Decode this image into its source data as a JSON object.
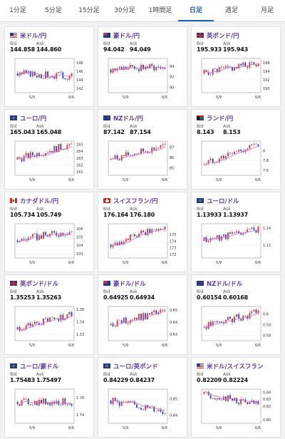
{
  "tabs": [
    {
      "label": "1分足",
      "active": false
    },
    {
      "label": "5分足",
      "active": false
    },
    {
      "label": "15分足",
      "active": false
    },
    {
      "label": "30分足",
      "active": false
    },
    {
      "label": "1時間足",
      "active": false
    },
    {
      "label": "日足",
      "active": true
    },
    {
      "label": "週足",
      "active": false
    },
    {
      "label": "月足",
      "active": false
    }
  ],
  "labels": {
    "bid": "Bid",
    "ask": "Ask"
  },
  "colors": {
    "up": "#e03a3a",
    "down": "#2b4fc6",
    "ma": "#d46bd6",
    "accent": "#1d5fb5"
  },
  "cards": [
    {
      "name": "米ドル/円",
      "flag": "us-flag",
      "bid": "144.858",
      "ask": "144.860"
    },
    {
      "name": "豪ドル/円",
      "flag": "au-flag",
      "bid": "94.042",
      "ask": "94.049"
    },
    {
      "name": "英ポンド/円",
      "flag": "gb-flag",
      "bid": "195.933",
      "ask": "195.943"
    },
    {
      "name": "ユーロ/円",
      "flag": "eu-flag",
      "bid": "165.043",
      "ask": "165.048"
    },
    {
      "name": "NZドル/円",
      "flag": "nz-flag",
      "bid": "87.142",
      "ask": "87.154"
    },
    {
      "name": "ランド/円",
      "flag": "za-flag",
      "bid": "8.143",
      "ask": "8.153"
    },
    {
      "name": "カナダドル/円",
      "flag": "ca-flag",
      "bid": "105.734",
      "ask": "105.749"
    },
    {
      "name": "スイスフラン/円",
      "flag": "ch-flag",
      "bid": "176.164",
      "ask": "176.180"
    },
    {
      "name": "ユーロ/ドル",
      "flag": "eu-flag",
      "bid": "1.13933",
      "ask": "1.13937"
    },
    {
      "name": "英ポンド/ドル",
      "flag": "gb-flag",
      "bid": "1.35253",
      "ask": "1.35263"
    },
    {
      "name": "豪ドル/ドル",
      "flag": "au-flag",
      "bid": "0.64925",
      "ask": "0.64934"
    },
    {
      "name": "NZドル/ドル",
      "flag": "nz-flag",
      "bid": "0.60154",
      "ask": "0.60168"
    },
    {
      "name": "ユーロ/豪ドル",
      "flag": "eu-flag",
      "bid": "1.75483",
      "ask": "1.75497"
    },
    {
      "name": "ユーロ/英ポンド",
      "flag": "eu-flag",
      "bid": "0.84229",
      "ask": "0.84237"
    },
    {
      "name": "米ドル/スイスフラン",
      "flag": "us-flag",
      "bid": "0.82209",
      "ask": "0.82224"
    }
  ],
  "chart_data": [
    {
      "type": "candlestick",
      "pair": "米ドル/円",
      "x_ticks": [
        "5/9",
        "6/6"
      ],
      "y_ticks": [
        "148",
        "146",
        "144",
        "142"
      ],
      "ylim": [
        141,
        149
      ],
      "start": 145.5,
      "end": 144.86
    },
    {
      "type": "candlestick",
      "pair": "豪ドル/円",
      "x_ticks": [
        "5/9",
        "6/6"
      ],
      "y_ticks": [
        "94",
        "92",
        "90"
      ],
      "ylim": [
        89,
        95.5
      ],
      "start": 93.4,
      "end": 94.04
    },
    {
      "type": "candlestick",
      "pair": "英ポンド/円",
      "x_ticks": [
        "5/9",
        "6/6"
      ],
      "y_ticks": [
        "196",
        "194",
        "192",
        "190"
      ],
      "ylim": [
        189,
        197
      ],
      "start": 193.5,
      "end": 195.93
    },
    {
      "type": "candlestick",
      "pair": "ユーロ/円",
      "x_ticks": [
        "5/9",
        "6/6"
      ],
      "y_ticks": [
        "165",
        "164",
        "163",
        "162",
        "161"
      ],
      "ylim": [
        160.5,
        165.5
      ],
      "start": 162.8,
      "end": 165.04
    },
    {
      "type": "candlestick",
      "pair": "NZドル/円",
      "x_ticks": [
        "5/9",
        "6/6"
      ],
      "y_ticks": [
        "87",
        "86",
        "85"
      ],
      "ylim": [
        84.3,
        87.6
      ],
      "start": 85.8,
      "end": 87.14
    },
    {
      "type": "candlestick",
      "pair": "ランド/円",
      "x_ticks": [
        "5/9",
        "6/6"
      ],
      "y_ticks": [
        "8",
        "7.8",
        "7.6"
      ],
      "ylim": [
        7.5,
        8.2
      ],
      "start": 7.72,
      "end": 8.14
    },
    {
      "type": "candlestick",
      "pair": "カナダドル/円",
      "x_ticks": [
        "5/9",
        "6/6"
      ],
      "y_ticks": [
        "106",
        "105",
        "104",
        "103"
      ],
      "ylim": [
        102.5,
        106.6
      ],
      "start": 104.6,
      "end": 105.73
    },
    {
      "type": "candlestick",
      "pair": "スイスフラン/円",
      "x_ticks": [
        "5/9",
        "6/6"
      ],
      "y_ticks": [
        "175",
        "174",
        "173",
        "172"
      ],
      "ylim": [
        171.5,
        176.6
      ],
      "start": 173.5,
      "end": 176.16
    },
    {
      "type": "candlestick",
      "pair": "ユーロ/ドル",
      "x_ticks": [
        "5/9",
        "6/6"
      ],
      "y_ticks": [
        "1.14",
        "1.12"
      ],
      "ylim": [
        1.105,
        1.145
      ],
      "start": 1.125,
      "end": 1.1393
    },
    {
      "type": "candlestick",
      "pair": "英ポンド/ドル",
      "x_ticks": [
        "5/9",
        "6/6"
      ],
      "y_ticks": [
        "1.36",
        "1.34",
        "1.32"
      ],
      "ylim": [
        1.31,
        1.365
      ],
      "start": 1.328,
      "end": 1.3525
    },
    {
      "type": "candlestick",
      "pair": "豪ドル/ドル",
      "x_ticks": [
        "5/9",
        "6/6"
      ],
      "y_ticks": [
        "0.65",
        "0.64",
        "0.63"
      ],
      "ylim": [
        0.625,
        0.653
      ],
      "start": 0.638,
      "end": 0.6493
    },
    {
      "type": "candlestick",
      "pair": "NZドル/ドル",
      "x_ticks": [
        "5/9",
        "6/6"
      ],
      "y_ticks": [
        "0.6",
        "0.59",
        "0.58"
      ],
      "ylim": [
        0.575,
        0.607
      ],
      "start": 0.588,
      "end": 0.6015
    },
    {
      "type": "candlestick",
      "pair": "ユーロ/豪ドル",
      "x_ticks": [
        "5/9",
        "6/6"
      ],
      "y_ticks": [
        "1.76",
        "1.74"
      ],
      "ylim": [
        1.73,
        1.77
      ],
      "start": 1.755,
      "end": 1.7548
    },
    {
      "type": "candlestick",
      "pair": "ユーロ/英ポンド",
      "x_ticks": [
        "5/9",
        "6/6"
      ],
      "y_ticks": [
        "0.85",
        "0.84"
      ],
      "ylim": [
        0.835,
        0.856
      ],
      "start": 0.849,
      "end": 0.8423
    },
    {
      "type": "candlestick",
      "pair": "米ドル/スイスフラン",
      "x_ticks": [
        "5/9",
        "6/6"
      ],
      "y_ticks": [
        "0.80",
        "0.82",
        "0.83",
        "0.84"
      ],
      "ylim": [
        0.795,
        0.845
      ],
      "start": 0.838,
      "end": 0.8221
    }
  ]
}
